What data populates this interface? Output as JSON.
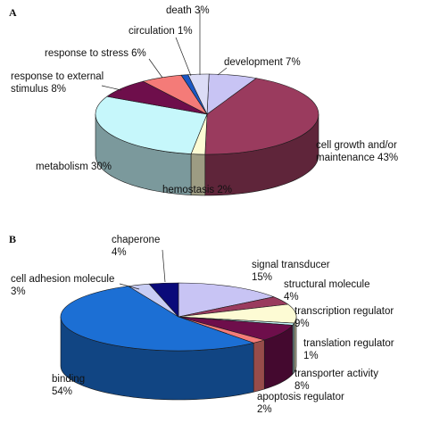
{
  "chart_data": [
    {
      "type": "pie",
      "panel": "A",
      "slices": [
        {
          "label": "development",
          "value": 7,
          "color": "#c8c4f4"
        },
        {
          "label": "cell growth and/or maintenance",
          "value": 43,
          "color": "#9a3b5e"
        },
        {
          "label": "hemostasis",
          "value": 2,
          "color": "#fdfbd4"
        },
        {
          "label": "metabolism",
          "value": 30,
          "color": "#c6f7fb"
        },
        {
          "label": "response to external stimulus",
          "value": 8,
          "color": "#6e0e4b"
        },
        {
          "label": "response to stress",
          "value": 6,
          "color": "#f47b78"
        },
        {
          "label": "circulation",
          "value": 1,
          "color": "#1c58c4"
        },
        {
          "label": "death",
          "value": 3,
          "color": "#dcdcf6"
        }
      ],
      "labels": [
        {
          "lines": [
            "death 3%"
          ]
        },
        {
          "lines": [
            "circulation 1%"
          ]
        },
        {
          "lines": [
            "response to stress 6%"
          ]
        },
        {
          "lines": [
            "response to external",
            "stimulus 8%"
          ]
        },
        {
          "lines": [
            "development 7%"
          ]
        },
        {
          "lines": [
            "cell growth and/or",
            "maintenance 43%"
          ]
        },
        {
          "lines": [
            "metabolism 30%"
          ]
        },
        {
          "lines": [
            "hemostasis 2%"
          ]
        }
      ]
    },
    {
      "type": "pie",
      "panel": "B",
      "slices": [
        {
          "label": "signal transducer",
          "value": 15,
          "color": "#c8c4f4"
        },
        {
          "label": "structural molecule",
          "value": 4,
          "color": "#9a3b5e"
        },
        {
          "label": "transcription regulator",
          "value": 9,
          "color": "#fdfbd4"
        },
        {
          "label": "translation regulator",
          "value": 1,
          "color": "#c6f7fb"
        },
        {
          "label": "transporter activity",
          "value": 8,
          "color": "#6e0e4b"
        },
        {
          "label": "apoptosis regulator",
          "value": 2,
          "color": "#f47b78"
        },
        {
          "label": "binding",
          "value": 54,
          "color": "#1c6fd4"
        },
        {
          "label": "cell adhesion molecule",
          "value": 3,
          "color": "#c8cdf4"
        },
        {
          "label": "chaperone",
          "value": 4,
          "color": "#0a0a7a"
        }
      ],
      "labels": [
        {
          "lines": [
            "chaperone",
            "4%"
          ]
        },
        {
          "lines": [
            "cell adhesion molecule",
            "3%"
          ]
        },
        {
          "lines": [
            "signal transducer",
            "15%"
          ]
        },
        {
          "lines": [
            "structural molecule",
            "4%"
          ]
        },
        {
          "lines": [
            "transcription regulator",
            "9%"
          ]
        },
        {
          "lines": [
            "translation regulator",
            "1%"
          ]
        },
        {
          "lines": [
            "transporter activity",
            "8%"
          ]
        },
        {
          "lines": [
            "apoptosis regulator",
            "2%"
          ]
        },
        {
          "lines": [
            "binding",
            "54%"
          ]
        }
      ]
    }
  ]
}
